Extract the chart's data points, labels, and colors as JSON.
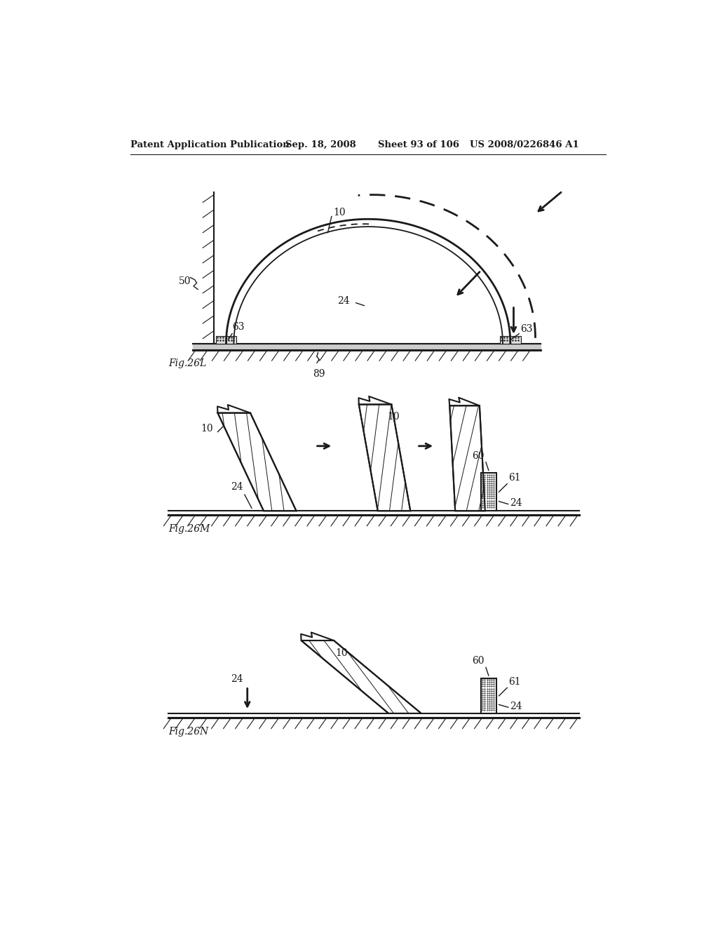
{
  "bg_color": "#ffffff",
  "line_color": "#1a1a1a",
  "header_text": "Patent Application Publication",
  "header_date": "Sep. 18, 2008",
  "header_sheet": "Sheet 93 of 106",
  "header_patent": "US 2008/0226846 A1",
  "figL_label": "Fig.26L",
  "figM_label": "Fig.26M",
  "figN_label": "Fig.26N"
}
